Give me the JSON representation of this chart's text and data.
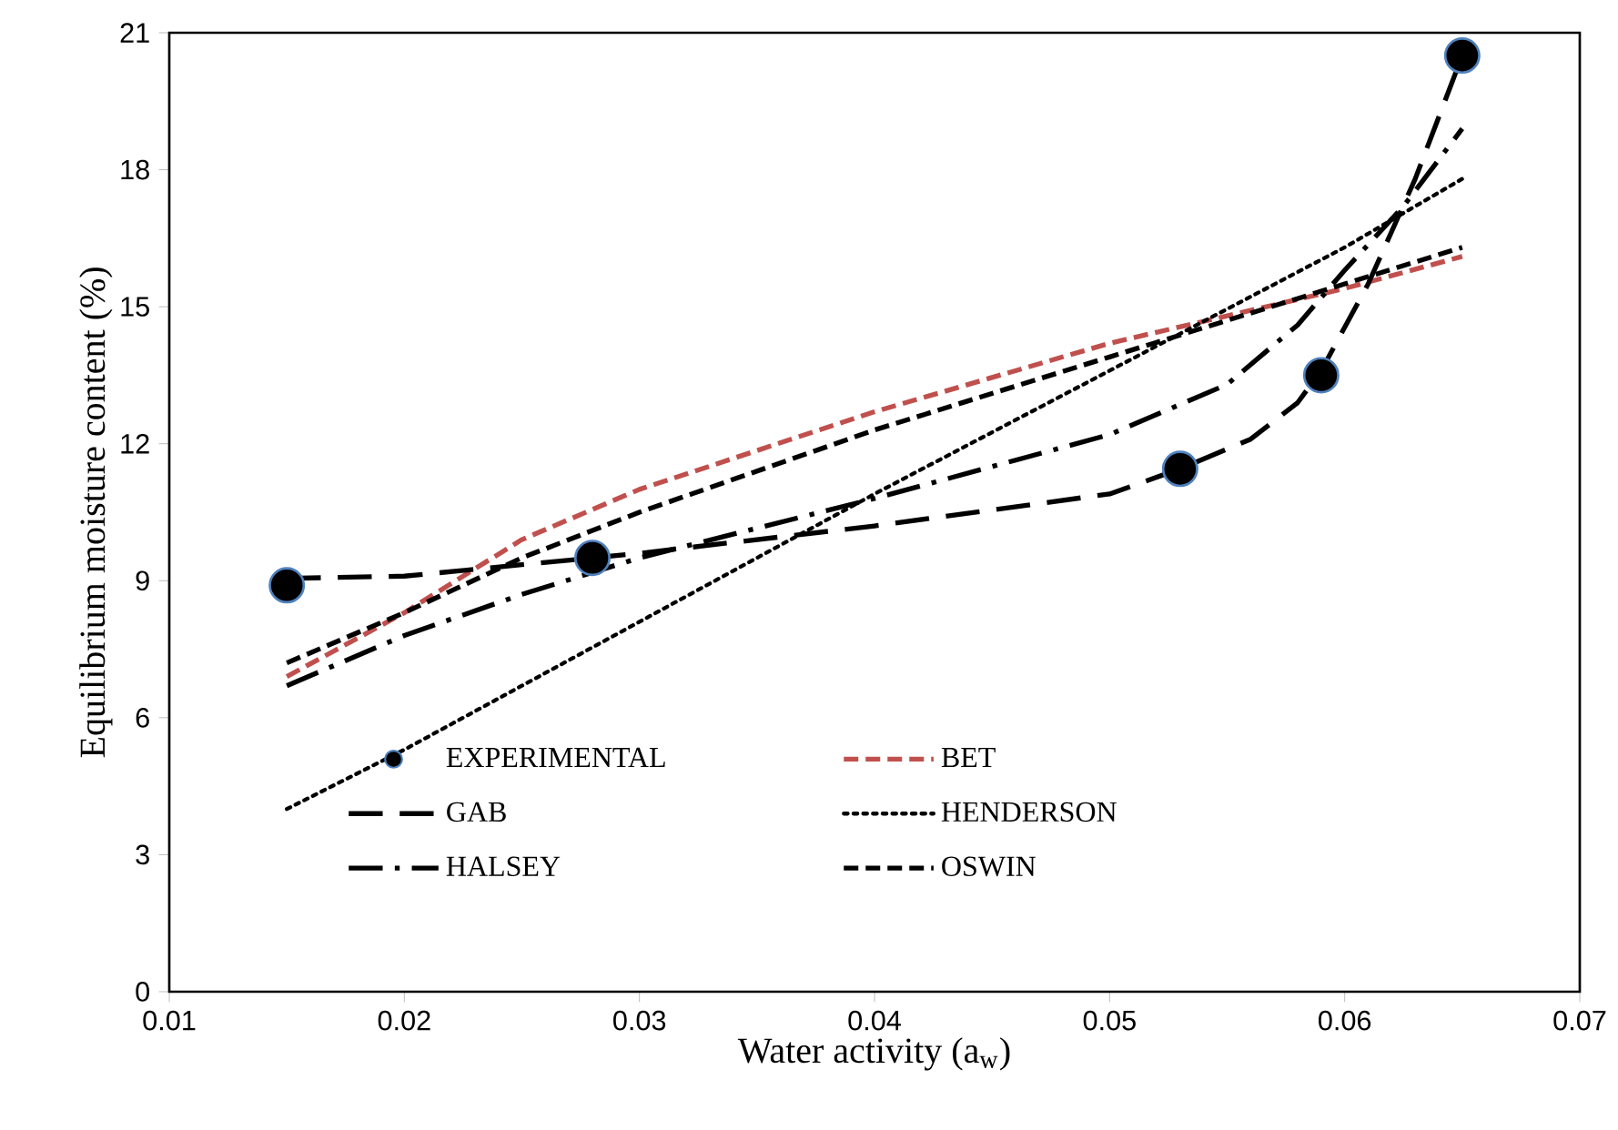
{
  "chart_data": {
    "type": "line",
    "xlabel": "Water activity (a$_{w}$)",
    "ylabel": "Equilibrium moisture content (%)",
    "xlim": [
      0.01,
      0.07
    ],
    "xticks": [
      0.01,
      0.02,
      0.03,
      0.04,
      0.05,
      0.06,
      0.07
    ],
    "ylim": [
      0,
      21
    ],
    "yticks": [
      0,
      3,
      6,
      9,
      12,
      15,
      18,
      21
    ],
    "legend": "bottom",
    "grid": false,
    "series": [
      {
        "name": "EXPERIMENTAL",
        "type": "scatter",
        "marker": "circle",
        "color": "#000000",
        "x": [
          0.015,
          0.028,
          0.053,
          0.059,
          0.065
        ],
        "values": [
          8.9,
          9.5,
          11.45,
          13.5,
          20.5
        ]
      },
      {
        "name": "BET",
        "line_style": "dashed",
        "color": "#c0504d",
        "x": [
          0.015,
          0.02,
          0.025,
          0.03,
          0.04,
          0.05,
          0.06,
          0.065
        ],
        "values": [
          6.9,
          8.3,
          9.9,
          11.0,
          12.7,
          14.2,
          15.4,
          16.1
        ]
      },
      {
        "name": "GAB",
        "line_style": "long dashed",
        "color": "#000000",
        "x": [
          0.015,
          0.02,
          0.03,
          0.04,
          0.05,
          0.053,
          0.056,
          0.058,
          0.059,
          0.061,
          0.063,
          0.065
        ],
        "values": [
          9.05,
          9.1,
          9.6,
          10.2,
          10.9,
          11.45,
          12.1,
          12.9,
          13.6,
          15.5,
          17.8,
          20.5
        ]
      },
      {
        "name": "HENDERSON",
        "line_style": "dotted",
        "color": "#000000",
        "x": [
          0.015,
          0.02,
          0.03,
          0.04,
          0.05,
          0.06,
          0.065
        ],
        "values": [
          4.0,
          5.3,
          8.1,
          10.9,
          13.6,
          16.3,
          17.8
        ]
      },
      {
        "name": "HALSEY",
        "line_style": "dash dot",
        "color": "#000000",
        "x": [
          0.015,
          0.02,
          0.025,
          0.03,
          0.04,
          0.05,
          0.055,
          0.058,
          0.06,
          0.0625,
          0.065
        ],
        "values": [
          6.7,
          7.8,
          8.7,
          9.5,
          10.8,
          12.2,
          13.3,
          14.6,
          15.8,
          17.2,
          18.9
        ]
      },
      {
        "name": "OSWIN",
        "line_style": "dashed",
        "color": "#000000",
        "x": [
          0.015,
          0.02,
          0.025,
          0.03,
          0.04,
          0.05,
          0.06,
          0.065
        ],
        "values": [
          7.2,
          8.3,
          9.5,
          10.5,
          12.3,
          13.9,
          15.5,
          16.3
        ]
      }
    ]
  }
}
